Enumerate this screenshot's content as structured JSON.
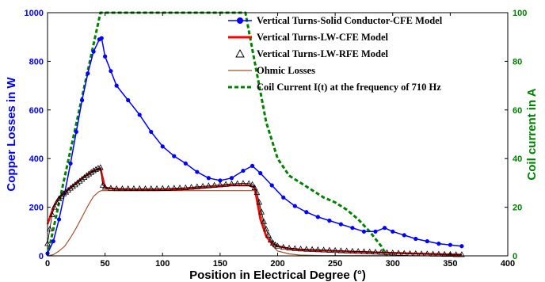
{
  "chart_data": {
    "type": "line",
    "xlabel": "Position in Electrical Degree (°)",
    "ylabel_left": "Copper Losses in W",
    "ylabel_right": "Coil current in A",
    "xlim": [
      0,
      400
    ],
    "ylim_left": [
      0,
      1000
    ],
    "ylim_right": [
      0,
      100
    ],
    "x_ticks": [
      0,
      50,
      100,
      150,
      200,
      250,
      300,
      350,
      400
    ],
    "y_left_ticks": [
      0,
      200,
      400,
      600,
      800,
      1000
    ],
    "y_right_ticks": [
      0,
      20,
      40,
      60,
      80,
      100
    ],
    "grid": false,
    "legend_position": "top-right",
    "series": [
      {
        "name": "Vertical Turns-Solid Conductor-CFE Model",
        "axis": "left",
        "color": "#0000ff",
        "marker": "dot",
        "points": [
          [
            0,
            10
          ],
          [
            5,
            60
          ],
          [
            10,
            150
          ],
          [
            15,
            260
          ],
          [
            20,
            380
          ],
          [
            25,
            510
          ],
          [
            30,
            640
          ],
          [
            35,
            750
          ],
          [
            40,
            840
          ],
          [
            45,
            890
          ],
          [
            47,
            895
          ],
          [
            50,
            820
          ],
          [
            55,
            760
          ],
          [
            60,
            700
          ],
          [
            70,
            640
          ],
          [
            80,
            580
          ],
          [
            90,
            510
          ],
          [
            100,
            450
          ],
          [
            110,
            410
          ],
          [
            120,
            380
          ],
          [
            130,
            345
          ],
          [
            140,
            320
          ],
          [
            150,
            310
          ],
          [
            160,
            320
          ],
          [
            170,
            350
          ],
          [
            178,
            370
          ],
          [
            185,
            340
          ],
          [
            195,
            290
          ],
          [
            205,
            240
          ],
          [
            215,
            205
          ],
          [
            225,
            180
          ],
          [
            235,
            160
          ],
          [
            245,
            145
          ],
          [
            255,
            130
          ],
          [
            265,
            115
          ],
          [
            275,
            100
          ],
          [
            285,
            100
          ],
          [
            293,
            115
          ],
          [
            300,
            100
          ],
          [
            310,
            85
          ],
          [
            320,
            70
          ],
          [
            330,
            60
          ],
          [
            340,
            50
          ],
          [
            350,
            45
          ],
          [
            360,
            40
          ]
        ]
      },
      {
        "name": "Vertical Turns-LW-CFE Model",
        "axis": "left",
        "color": "#ff0000",
        "marker": "none",
        "points": [
          [
            0,
            130
          ],
          [
            5,
            200
          ],
          [
            10,
            240
          ],
          [
            15,
            260
          ],
          [
            20,
            280
          ],
          [
            25,
            300
          ],
          [
            30,
            320
          ],
          [
            35,
            335
          ],
          [
            40,
            350
          ],
          [
            46,
            360
          ],
          [
            50,
            280
          ],
          [
            60,
            275
          ],
          [
            80,
            272
          ],
          [
            100,
            272
          ],
          [
            120,
            275
          ],
          [
            140,
            282
          ],
          [
            160,
            290
          ],
          [
            175,
            290
          ],
          [
            180,
            280
          ],
          [
            185,
            150
          ],
          [
            190,
            80
          ],
          [
            195,
            50
          ],
          [
            200,
            40
          ],
          [
            210,
            30
          ],
          [
            220,
            25
          ],
          [
            240,
            22
          ],
          [
            260,
            18
          ],
          [
            280,
            15
          ],
          [
            300,
            12
          ],
          [
            330,
            8
          ],
          [
            360,
            5
          ]
        ]
      },
      {
        "name": "Vertical Turns-LW-RFE Model",
        "axis": "left",
        "color": "#000000",
        "marker": "triangle",
        "points": [
          [
            0,
            50
          ],
          [
            2,
            110
          ],
          [
            4,
            170
          ],
          [
            6,
            200
          ],
          [
            8,
            220
          ],
          [
            10,
            235
          ],
          [
            12,
            245
          ],
          [
            14,
            255
          ],
          [
            16,
            262
          ],
          [
            18,
            270
          ],
          [
            20,
            278
          ],
          [
            22,
            285
          ],
          [
            24,
            292
          ],
          [
            26,
            300
          ],
          [
            28,
            307
          ],
          [
            30,
            315
          ],
          [
            32,
            322
          ],
          [
            34,
            330
          ],
          [
            36,
            337
          ],
          [
            38,
            343
          ],
          [
            40,
            350
          ],
          [
            42,
            355
          ],
          [
            44,
            360
          ],
          [
            46,
            363
          ],
          [
            48,
            290
          ],
          [
            50,
            282
          ],
          [
            55,
            278
          ],
          [
            60,
            276
          ],
          [
            65,
            276
          ],
          [
            70,
            276
          ],
          [
            75,
            276
          ],
          [
            80,
            276
          ],
          [
            85,
            276
          ],
          [
            90,
            276
          ],
          [
            95,
            276
          ],
          [
            100,
            277
          ],
          [
            105,
            277
          ],
          [
            110,
            278
          ],
          [
            115,
            279
          ],
          [
            120,
            280
          ],
          [
            125,
            282
          ],
          [
            130,
            284
          ],
          [
            135,
            286
          ],
          [
            140,
            288
          ],
          [
            145,
            290
          ],
          [
            150,
            292
          ],
          [
            155,
            294
          ],
          [
            160,
            296
          ],
          [
            165,
            297
          ],
          [
            170,
            298
          ],
          [
            175,
            297
          ],
          [
            178,
            293
          ],
          [
            180,
            280
          ],
          [
            182,
            260
          ],
          [
            184,
            220
          ],
          [
            186,
            180
          ],
          [
            188,
            140
          ],
          [
            190,
            110
          ],
          [
            192,
            85
          ],
          [
            194,
            65
          ],
          [
            196,
            52
          ],
          [
            198,
            45
          ],
          [
            200,
            40
          ],
          [
            205,
            35
          ],
          [
            210,
            32
          ],
          [
            215,
            30
          ],
          [
            220,
            28
          ],
          [
            225,
            27
          ],
          [
            230,
            26
          ],
          [
            235,
            25
          ],
          [
            240,
            24
          ],
          [
            245,
            23
          ],
          [
            250,
            22
          ],
          [
            255,
            21
          ],
          [
            260,
            20
          ],
          [
            265,
            19
          ],
          [
            270,
            18
          ],
          [
            275,
            17
          ],
          [
            280,
            16
          ],
          [
            285,
            15
          ],
          [
            290,
            14
          ],
          [
            295,
            13
          ],
          [
            300,
            12
          ],
          [
            305,
            11
          ],
          [
            310,
            10
          ],
          [
            315,
            9
          ],
          [
            320,
            9
          ],
          [
            325,
            8
          ],
          [
            330,
            8
          ],
          [
            335,
            7
          ],
          [
            340,
            7
          ],
          [
            345,
            6
          ],
          [
            350,
            6
          ],
          [
            355,
            5
          ],
          [
            360,
            5
          ]
        ]
      },
      {
        "name": "Ohmic Losses",
        "axis": "left",
        "color": "#a0522d",
        "marker": "none",
        "points": [
          [
            0,
            0
          ],
          [
            5,
            5
          ],
          [
            10,
            20
          ],
          [
            15,
            40
          ],
          [
            20,
            75
          ],
          [
            25,
            115
          ],
          [
            30,
            160
          ],
          [
            35,
            205
          ],
          [
            40,
            245
          ],
          [
            45,
            265
          ],
          [
            47,
            268
          ],
          [
            100,
            268
          ],
          [
            150,
            268
          ],
          [
            180,
            268
          ],
          [
            183,
            230
          ],
          [
            186,
            160
          ],
          [
            190,
            90
          ],
          [
            195,
            45
          ],
          [
            200,
            20
          ],
          [
            210,
            8
          ],
          [
            220,
            3
          ],
          [
            240,
            1
          ],
          [
            360,
            0
          ]
        ]
      },
      {
        "name": "Coil Current I(t) at the frequency of 710 Hz",
        "axis": "right",
        "color": "#008000",
        "marker": "none",
        "dashed": true,
        "points": [
          [
            0,
            0
          ],
          [
            46,
            100
          ],
          [
            172,
            100
          ],
          [
            180,
            80
          ],
          [
            190,
            55
          ],
          [
            200,
            40
          ],
          [
            210,
            33
          ],
          [
            220,
            30
          ],
          [
            230,
            27
          ],
          [
            240,
            24
          ],
          [
            250,
            22
          ],
          [
            260,
            19
          ],
          [
            270,
            15
          ],
          [
            280,
            10
          ],
          [
            290,
            4
          ],
          [
            295,
            0
          ]
        ]
      }
    ]
  }
}
